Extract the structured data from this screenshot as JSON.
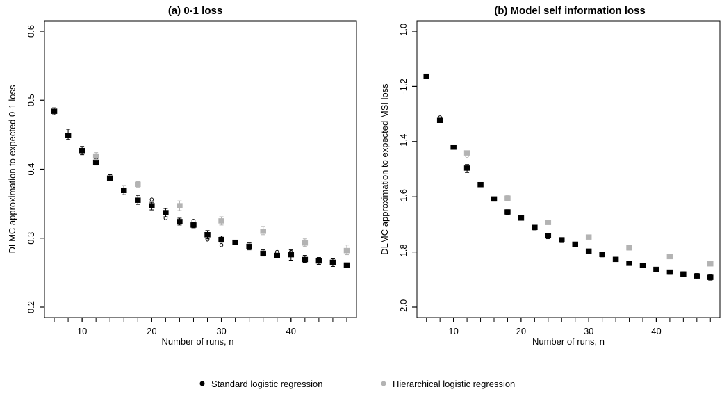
{
  "chart_data": [
    {
      "type": "box",
      "title": "(a) 0-1 loss",
      "xlabel": "Number of runs, n",
      "ylabel": "DLMC approximation to expected 0-1 loss",
      "xlim": [
        5,
        49
      ],
      "ylim": [
        0.2,
        0.6
      ],
      "xticks": [
        10,
        20,
        30,
        40
      ],
      "yticks": [
        0.2,
        0.3,
        0.4,
        0.5,
        0.6
      ],
      "series": [
        {
          "name": "Standard logistic regression",
          "color": "#000000",
          "points": [
            {
              "x": 6,
              "y": 0.484,
              "lo": 0.479,
              "hi": 0.489
            },
            {
              "x": 8,
              "y": 0.449,
              "lo": 0.443,
              "hi": 0.458
            },
            {
              "x": 10,
              "y": 0.427,
              "lo": 0.421,
              "hi": 0.433
            },
            {
              "x": 12,
              "y": 0.41,
              "lo": 0.406,
              "hi": 0.415
            },
            {
              "x": 14,
              "y": 0.387,
              "lo": 0.383,
              "hi": 0.392
            },
            {
              "x": 16,
              "y": 0.369,
              "lo": 0.363,
              "hi": 0.376
            },
            {
              "x": 18,
              "y": 0.355,
              "lo": 0.349,
              "hi": 0.362
            },
            {
              "x": 20,
              "y": 0.347,
              "lo": 0.341,
              "hi": 0.352
            },
            {
              "x": 22,
              "y": 0.337,
              "lo": 0.331,
              "hi": 0.343
            },
            {
              "x": 24,
              "y": 0.324,
              "lo": 0.319,
              "hi": 0.329
            },
            {
              "x": 26,
              "y": 0.319,
              "lo": 0.315,
              "hi": 0.323
            },
            {
              "x": 28,
              "y": 0.305,
              "lo": 0.299,
              "hi": 0.311
            },
            {
              "x": 30,
              "y": 0.298,
              "lo": 0.294,
              "hi": 0.303
            },
            {
              "x": 32,
              "y": 0.294,
              "lo": 0.291,
              "hi": 0.297
            },
            {
              "x": 34,
              "y": 0.288,
              "lo": 0.283,
              "hi": 0.293
            },
            {
              "x": 36,
              "y": 0.278,
              "lo": 0.274,
              "hi": 0.283
            },
            {
              "x": 38,
              "y": 0.275,
              "lo": 0.272,
              "hi": 0.278
            },
            {
              "x": 40,
              "y": 0.276,
              "lo": 0.268,
              "hi": 0.283
            },
            {
              "x": 42,
              "y": 0.269,
              "lo": 0.265,
              "hi": 0.275
            },
            {
              "x": 44,
              "y": 0.267,
              "lo": 0.262,
              "hi": 0.272
            },
            {
              "x": 46,
              "y": 0.265,
              "lo": 0.259,
              "hi": 0.27
            },
            {
              "x": 48,
              "y": 0.261,
              "lo": 0.257,
              "hi": 0.264
            }
          ],
          "outliers": [
            [
              20,
              0.356
            ],
            [
              22,
              0.329
            ],
            [
              26,
              0.325
            ],
            [
              28,
              0.298
            ],
            [
              30,
              0.29
            ],
            [
              38,
              0.28
            ],
            [
              40,
              0.28
            ]
          ]
        },
        {
          "name": "Hierarchical logistic regression",
          "color": "#b3b3b3",
          "points": [
            {
              "x": 12,
              "y": 0.419,
              "lo": 0.414,
              "hi": 0.424
            },
            {
              "x": 18,
              "y": 0.378,
              "lo": 0.374,
              "hi": 0.382
            },
            {
              "x": 24,
              "y": 0.347,
              "lo": 0.34,
              "hi": 0.354
            },
            {
              "x": 30,
              "y": 0.325,
              "lo": 0.319,
              "hi": 0.331
            },
            {
              "x": 36,
              "y": 0.31,
              "lo": 0.305,
              "hi": 0.317
            },
            {
              "x": 42,
              "y": 0.293,
              "lo": 0.288,
              "hi": 0.299
            },
            {
              "x": 48,
              "y": 0.282,
              "lo": 0.276,
              "hi": 0.29
            }
          ],
          "outliers": []
        }
      ]
    },
    {
      "type": "box",
      "title": "(b) Model self information loss",
      "xlabel": "Number of runs, n",
      "ylabel": "DLMC approximation to expected MSI loss",
      "xlim": [
        5,
        49
      ],
      "ylim": [
        -2.0,
        -1.0
      ],
      "xticks": [
        10,
        20,
        30,
        40
      ],
      "yticks": [
        -2.0,
        -1.8,
        -1.6,
        -1.4,
        -1.2,
        -1.0
      ],
      "series": [
        {
          "name": "Standard logistic regression",
          "color": "#000000",
          "points": [
            {
              "x": 6,
              "y": -1.163,
              "lo": -1.17,
              "hi": -1.157
            },
            {
              "x": 8,
              "y": -1.323,
              "lo": -1.331,
              "hi": -1.316
            },
            {
              "x": 10,
              "y": -1.42,
              "lo": -1.428,
              "hi": -1.413
            },
            {
              "x": 12,
              "y": -1.496,
              "lo": -1.512,
              "hi": -1.483
            },
            {
              "x": 14,
              "y": -1.556,
              "lo": -1.562,
              "hi": -1.551
            },
            {
              "x": 16,
              "y": -1.608,
              "lo": -1.616,
              "hi": -1.601
            },
            {
              "x": 18,
              "y": -1.655,
              "lo": -1.665,
              "hi": -1.647
            },
            {
              "x": 20,
              "y": -1.677,
              "lo": -1.685,
              "hi": -1.67
            },
            {
              "x": 22,
              "y": -1.711,
              "lo": -1.72,
              "hi": -1.703
            },
            {
              "x": 24,
              "y": -1.741,
              "lo": -1.752,
              "hi": -1.732
            },
            {
              "x": 26,
              "y": -1.756,
              "lo": -1.766,
              "hi": -1.748
            },
            {
              "x": 28,
              "y": -1.772,
              "lo": -1.78,
              "hi": -1.765
            },
            {
              "x": 30,
              "y": -1.797,
              "lo": -1.804,
              "hi": -1.79
            },
            {
              "x": 32,
              "y": -1.809,
              "lo": -1.818,
              "hi": -1.801
            },
            {
              "x": 34,
              "y": -1.827,
              "lo": -1.834,
              "hi": -1.82
            },
            {
              "x": 36,
              "y": -1.841,
              "lo": -1.846,
              "hi": -1.836
            },
            {
              "x": 38,
              "y": -1.849,
              "lo": -1.857,
              "hi": -1.842
            },
            {
              "x": 40,
              "y": -1.863,
              "lo": -1.87,
              "hi": -1.857
            },
            {
              "x": 42,
              "y": -1.873,
              "lo": -1.881,
              "hi": -1.866
            },
            {
              "x": 44,
              "y": -1.88,
              "lo": -1.888,
              "hi": -1.872
            },
            {
              "x": 46,
              "y": -1.887,
              "lo": -1.898,
              "hi": -1.878
            },
            {
              "x": 48,
              "y": -1.892,
              "lo": -1.902,
              "hi": -1.883
            }
          ],
          "outliers": [
            [
              8,
              -1.312
            ]
          ]
        },
        {
          "name": "Hierarchical logistic regression",
          "color": "#b3b3b3",
          "points": [
            {
              "x": 12,
              "y": -1.441,
              "lo": -1.448,
              "hi": -1.435
            },
            {
              "x": 18,
              "y": -1.605,
              "lo": -1.614,
              "hi": -1.596
            },
            {
              "x": 24,
              "y": -1.693,
              "lo": -1.7,
              "hi": -1.686
            },
            {
              "x": 30,
              "y": -1.746,
              "lo": -1.753,
              "hi": -1.74
            },
            {
              "x": 36,
              "y": -1.785,
              "lo": -1.793,
              "hi": -1.776
            },
            {
              "x": 42,
              "y": -1.817,
              "lo": -1.824,
              "hi": -1.81
            },
            {
              "x": 48,
              "y": -1.843,
              "lo": -1.849,
              "hi": -1.838
            }
          ],
          "outliers": [
            [
              12,
              -1.452
            ]
          ]
        }
      ]
    }
  ],
  "legend": {
    "placement": "bottom",
    "items": [
      {
        "label": "Standard logistic regression",
        "color": "#000000"
      },
      {
        "label": "Hierarchical logistic regression",
        "color": "#b3b3b3"
      }
    ]
  }
}
